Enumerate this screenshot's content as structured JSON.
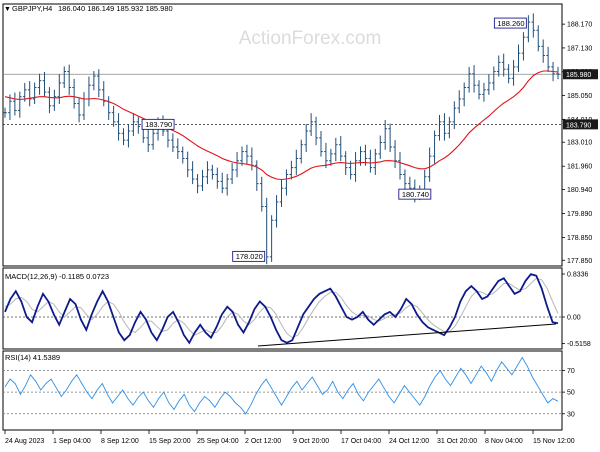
{
  "header": {
    "symbol": "GBPJPY,H4",
    "ohlc": "186.040 186.149 185.932 185.980",
    "watermark": "ActionForex.com"
  },
  "colors": {
    "candle": "#1f4e79",
    "ma": "#e0141b",
    "macd": "#0d1a8c",
    "signal": "#b7b7b7",
    "rsi": "#2e8fe6",
    "frame": "#000000",
    "grid": "#888888",
    "price_tag_bg": "#1a1a1a",
    "annotation_border": "#1a1a8c"
  },
  "chart_data": [
    {
      "type": "line",
      "pane": "price",
      "title": "GBPJPY,H4",
      "subtitle": "186.040 186.149 185.932 185.980",
      "y_ticks": [
        "188.170",
        "187.130",
        "186.090",
        "185.050",
        "184.010",
        "183.010",
        "181.960",
        "180.940",
        "179.890",
        "178.850",
        "177.850"
      ],
      "ylim": [
        177.6,
        189.05
      ],
      "series": [
        {
          "values": [
            184.3,
            184.8,
            184.4,
            185.0,
            185.3,
            184.9,
            185.4,
            185.7,
            185.2,
            184.6,
            185.0,
            185.6,
            186.1,
            185.4,
            184.7,
            184.2,
            184.9,
            185.5,
            185.9,
            185.3,
            184.8,
            184.3,
            183.9,
            183.4,
            183.1,
            183.5,
            183.9,
            183.7,
            183.2,
            182.9,
            183.4,
            183.8,
            183.5,
            183.1,
            182.8,
            182.6,
            182.3,
            181.8,
            181.4,
            181.1,
            181.5,
            181.8,
            181.6,
            181.3,
            181.0,
            181.4,
            181.8,
            182.2,
            182.6,
            182.4,
            182.0,
            181.2,
            180.2,
            178.0,
            179.6,
            180.4,
            181.0,
            181.6,
            181.9,
            182.3,
            182.9,
            183.5,
            183.9,
            183.2,
            182.6,
            182.2,
            182.5,
            182.9,
            182.4,
            181.9,
            181.6,
            182.2,
            182.6,
            182.3,
            181.9,
            182.5,
            183.0,
            183.6,
            182.8,
            182.2,
            181.6,
            181.2,
            181.0,
            180.7,
            180.9,
            181.5,
            182.4,
            183.3,
            183.9,
            183.4,
            183.9,
            184.5,
            184.9,
            185.4,
            186.0,
            185.5,
            185.1,
            185.3,
            185.6,
            186.1,
            186.5,
            186.2,
            185.8,
            186.3,
            186.9,
            187.6,
            188.26,
            187.9,
            187.2,
            186.8,
            186.3,
            186.0,
            185.98
          ]
        },
        {
          "values": [
            185.0,
            184.95,
            184.9,
            184.88,
            184.9,
            184.93,
            184.97,
            185.0,
            185.0,
            184.97,
            184.95,
            184.95,
            185.0,
            185.02,
            185.0,
            184.95,
            184.9,
            184.9,
            184.92,
            184.9,
            184.85,
            184.78,
            184.7,
            184.58,
            184.45,
            184.35,
            184.25,
            184.15,
            184.05,
            183.95,
            183.85,
            183.78,
            183.7,
            183.62,
            183.52,
            183.42,
            183.3,
            183.15,
            183.0,
            182.85,
            182.72,
            182.62,
            182.52,
            182.42,
            182.3,
            182.22,
            182.15,
            182.1,
            182.08,
            182.05,
            182.0,
            181.92,
            181.8,
            181.6,
            181.48,
            181.4,
            181.38,
            181.4,
            181.45,
            181.52,
            181.62,
            181.75,
            181.88,
            181.95,
            181.98,
            182.0,
            182.05,
            182.1,
            182.12,
            182.1,
            182.08,
            182.1,
            182.12,
            182.12,
            182.1,
            182.12,
            182.15,
            182.2,
            182.2,
            182.18,
            182.12,
            182.05,
            181.98,
            181.9,
            181.85,
            181.85,
            181.92,
            182.05,
            182.2,
            182.32,
            182.48,
            182.68,
            182.9,
            183.15,
            183.42,
            183.62,
            183.8,
            183.98,
            184.15,
            184.35,
            184.55,
            184.72,
            184.85,
            185.0,
            185.18,
            185.4,
            185.7,
            185.92,
            186.05,
            186.12,
            186.12,
            186.1,
            186.08
          ]
        }
      ],
      "horizontal_levels": [
        {
          "value": 185.98,
          "label": "185.980",
          "style": "solid"
        },
        {
          "value": 183.79,
          "label": "183.790",
          "style": "dotted"
        }
      ],
      "annotations": [
        {
          "x": "9 Oct 20:00",
          "value": 183.79,
          "label": "183.790"
        },
        {
          "x": "2 Oct 12:00",
          "value": 178.02,
          "label": "178.020"
        },
        {
          "x": "24 Oct 12:00",
          "value": 180.74,
          "label": "180.740"
        },
        {
          "x": "15 Nov 12:00",
          "value": 188.26,
          "label": "188.260"
        }
      ],
      "x_ticks": [
        "24 Aug 2023",
        "1 Sep 04:00",
        "8 Sep 12:00",
        "15 Sep 20:00",
        "25 Sep 04:00",
        "2 Oct 12:00",
        "9 Oct 20:00",
        "17 Oct 04:00",
        "24 Oct 12:00",
        "31 Oct 20:00",
        "8 Nov 04:00",
        "15 Nov 12:00"
      ]
    },
    {
      "type": "line",
      "pane": "macd",
      "title": "MACD(12,26,9) -0.1185 0.0723",
      "y_ticks": [
        "0.8336",
        "0.00",
        "-0.5158"
      ],
      "ylim": [
        -0.62,
        0.95
      ],
      "series": [
        {
          "values": [
            0.1,
            0.35,
            0.5,
            0.3,
            0.0,
            -0.1,
            0.2,
            0.45,
            0.3,
            0.05,
            -0.15,
            0.1,
            0.35,
            0.25,
            -0.05,
            -0.25,
            0.05,
            0.3,
            0.5,
            0.3,
            0.0,
            -0.3,
            -0.45,
            -0.35,
            -0.1,
            0.1,
            -0.05,
            -0.3,
            -0.45,
            -0.25,
            0.0,
            0.1,
            -0.1,
            -0.35,
            -0.5,
            -0.3,
            -0.15,
            -0.3,
            -0.4,
            -0.2,
            0.05,
            0.2,
            0.1,
            -0.15,
            -0.3,
            -0.1,
            0.15,
            0.3,
            0.2,
            0.0,
            -0.25,
            -0.45,
            -0.5,
            -0.45,
            -0.2,
            0.05,
            0.2,
            0.35,
            0.45,
            0.5,
            0.55,
            0.4,
            0.2,
            0.0,
            -0.05,
            0.0,
            0.1,
            -0.05,
            -0.15,
            -0.05,
            0.05,
            0.1,
            0.0,
            0.15,
            0.35,
            0.25,
            0.05,
            -0.1,
            -0.2,
            -0.25,
            -0.3,
            -0.35,
            -0.2,
            0.0,
            0.3,
            0.5,
            0.6,
            0.5,
            0.35,
            0.4,
            0.55,
            0.7,
            0.75,
            0.6,
            0.45,
            0.5,
            0.7,
            0.83,
            0.8,
            0.55,
            0.2,
            -0.1,
            -0.12
          ]
        },
        {
          "values": [
            0.2,
            0.25,
            0.35,
            0.38,
            0.3,
            0.15,
            0.1,
            0.2,
            0.3,
            0.25,
            0.1,
            0.0,
            0.1,
            0.2,
            0.18,
            0.05,
            -0.05,
            0.05,
            0.2,
            0.3,
            0.25,
            0.1,
            -0.1,
            -0.25,
            -0.3,
            -0.2,
            -0.08,
            -0.08,
            -0.18,
            -0.28,
            -0.25,
            -0.12,
            -0.05,
            -0.12,
            -0.25,
            -0.35,
            -0.3,
            -0.25,
            -0.3,
            -0.3,
            -0.18,
            0.0,
            0.1,
            0.05,
            -0.08,
            -0.15,
            -0.05,
            0.1,
            0.2,
            0.18,
            0.05,
            -0.15,
            -0.32,
            -0.4,
            -0.35,
            -0.2,
            -0.02,
            0.15,
            0.3,
            0.4,
            0.48,
            0.48,
            0.38,
            0.22,
            0.1,
            0.03,
            0.03,
            0.02,
            -0.05,
            -0.08,
            -0.03,
            0.03,
            0.05,
            0.08,
            0.18,
            0.25,
            0.2,
            0.08,
            -0.05,
            -0.15,
            -0.22,
            -0.28,
            -0.28,
            -0.18,
            0.0,
            0.2,
            0.4,
            0.5,
            0.48,
            0.42,
            0.45,
            0.55,
            0.65,
            0.65,
            0.58,
            0.52,
            0.55,
            0.65,
            0.75,
            0.72,
            0.55,
            0.3,
            0.07
          ]
        }
      ],
      "horizontal_levels": [
        {
          "value": 0.0,
          "style": "dotted"
        }
      ]
    },
    {
      "type": "line",
      "pane": "rsi",
      "title": "RSI(14) 41.5389",
      "y_ticks": [
        "70",
        "50",
        "30"
      ],
      "ylim": [
        15,
        88
      ],
      "series": [
        {
          "values": [
            55,
            62,
            58,
            48,
            56,
            66,
            60,
            52,
            58,
            62,
            54,
            46,
            52,
            60,
            66,
            58,
            50,
            44,
            52,
            58,
            48,
            40,
            46,
            52,
            44,
            38,
            45,
            50,
            42,
            36,
            44,
            50,
            40,
            34,
            42,
            48,
            38,
            32,
            40,
            46,
            42,
            36,
            44,
            50,
            46,
            40,
            36,
            30,
            38,
            48,
            56,
            62,
            54,
            46,
            38,
            46,
            54,
            60,
            52,
            58,
            64,
            56,
            48,
            52,
            60,
            50,
            44,
            52,
            58,
            48,
            42,
            50,
            56,
            62,
            54,
            46,
            40,
            48,
            56,
            50,
            44,
            38,
            46,
            56,
            64,
            70,
            62,
            56,
            64,
            72,
            66,
            58,
            66,
            74,
            68,
            60,
            70,
            78,
            72,
            66,
            74,
            82,
            74,
            64,
            56,
            48,
            40,
            44,
            41.5
          ]
        }
      ],
      "horizontal_levels": [
        {
          "value": 70,
          "style": "dotted"
        },
        {
          "value": 50,
          "style": "dotted"
        },
        {
          "value": 30,
          "style": "dotted"
        }
      ]
    }
  ]
}
